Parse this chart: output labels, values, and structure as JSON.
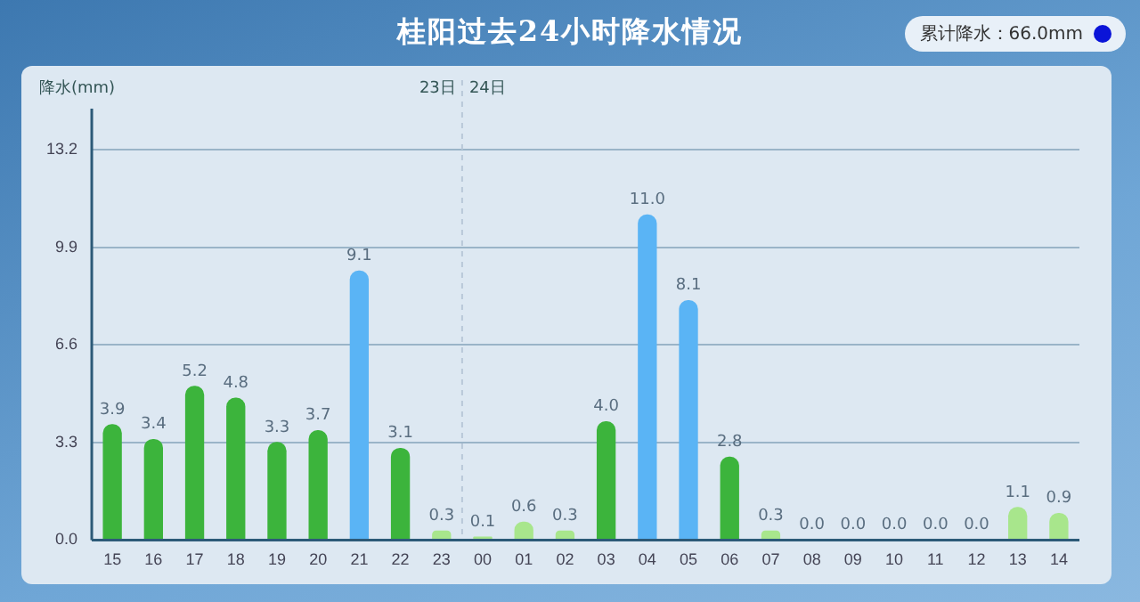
{
  "chart_data": {
    "type": "bar",
    "title": "桂阳过去24小时降水情况",
    "ylabel": "降水(mm)",
    "annotations": [
      "累计降水：66.0mm",
      "23日",
      "24日"
    ],
    "categories": [
      "15",
      "16",
      "17",
      "18",
      "19",
      "20",
      "21",
      "22",
      "23",
      "00",
      "01",
      "02",
      "03",
      "04",
      "05",
      "06",
      "07",
      "08",
      "09",
      "10",
      "11",
      "12",
      "13",
      "14"
    ],
    "values": [
      3.9,
      3.4,
      5.2,
      4.8,
      3.3,
      3.7,
      9.1,
      3.1,
      0.3,
      0.1,
      0.6,
      0.3,
      4.0,
      11.0,
      8.1,
      2.8,
      0.3,
      0.0,
      0.0,
      0.0,
      0.0,
      0.0,
      1.1,
      0.9
    ],
    "colors": [
      "#3cb43c",
      "#3cb43c",
      "#3cb43c",
      "#3cb43c",
      "#3cb43c",
      "#3cb43c",
      "#5ab4f5",
      "#3cb43c",
      "#a8e68c",
      "#a8e68c",
      "#a8e68c",
      "#a8e68c",
      "#3cb43c",
      "#5ab4f5",
      "#5ab4f5",
      "#3cb43c",
      "#a8e68c",
      "#ffffff",
      "#ffffff",
      "#ffffff",
      "#ffffff",
      "#ffffff",
      "#a8e68c",
      "#a8e68c"
    ],
    "ylim": [
      0,
      14.6
    ],
    "yticks": [
      {
        "value": 0,
        "label": "0.0"
      },
      {
        "value": 3.3,
        "label": "3.3"
      },
      {
        "value": 6.6,
        "label": "6.6"
      },
      {
        "value": 9.9,
        "label": "9.9"
      },
      {
        "value": 13.2,
        "label": "13.2"
      }
    ],
    "value_labels": [
      "3.9",
      "3.4",
      "5.2",
      "4.8",
      "3.3",
      "3.7",
      "9.1",
      "3.1",
      "0.3",
      "0.1",
      "0.6",
      "0.3",
      "4.0",
      "11.0",
      "8.1",
      "2.8",
      "0.3",
      "0.0",
      "0.0",
      "0.0",
      "0.0",
      "0.0",
      "1.1",
      "0.9"
    ],
    "ref_lines": [
      {
        "axis": "x",
        "value": "00",
        "color": "#b8c8d8",
        "line_style": "dashed"
      }
    ],
    "grid": "y",
    "legend": false
  }
}
